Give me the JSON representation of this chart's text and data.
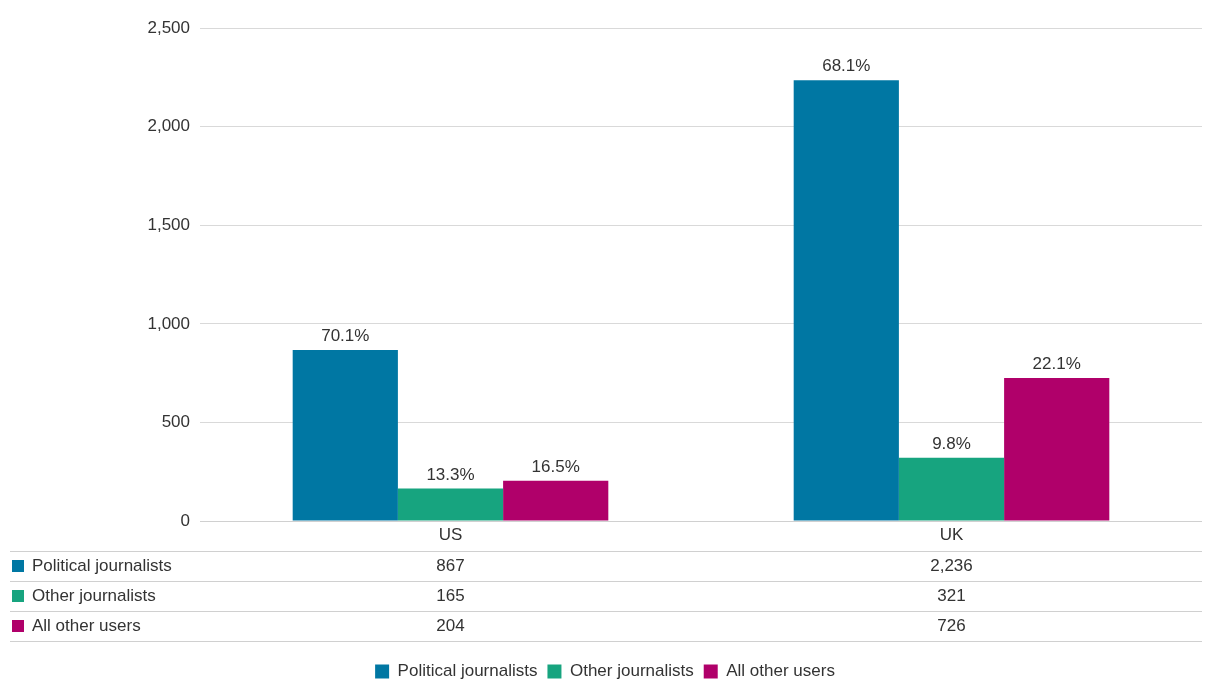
{
  "chart_data": {
    "type": "bar",
    "categories": [
      "US",
      "UK"
    ],
    "series": [
      {
        "name": "Political journalists",
        "color": "#0077a3",
        "values": [
          867,
          2236
        ],
        "value_labels": [
          "867",
          "2,236"
        ]
      },
      {
        "name": "Other journalists",
        "color": "#17a47f",
        "values": [
          165,
          321
        ],
        "value_labels": [
          "165",
          "321"
        ]
      },
      {
        "name": "All other users",
        "color": "#b0006a",
        "values": [
          204,
          726
        ],
        "value_labels": [
          "204",
          "726"
        ]
      }
    ],
    "annotations": [
      "70.1%",
      "68.1%",
      "13.3%",
      "9.8%",
      "16.5%",
      "22.1%"
    ],
    "ylim": [
      0,
      2500
    ],
    "yticks": [
      {
        "value": 0,
        "label": "0"
      },
      {
        "value": 500,
        "label": "500"
      },
      {
        "value": 1000,
        "label": "1,000"
      },
      {
        "value": 1500,
        "label": "1,500"
      },
      {
        "value": 2000,
        "label": "2,000"
      },
      {
        "value": 2500,
        "label": "2,500"
      }
    ],
    "grid": "y",
    "legend": "bottom"
  }
}
